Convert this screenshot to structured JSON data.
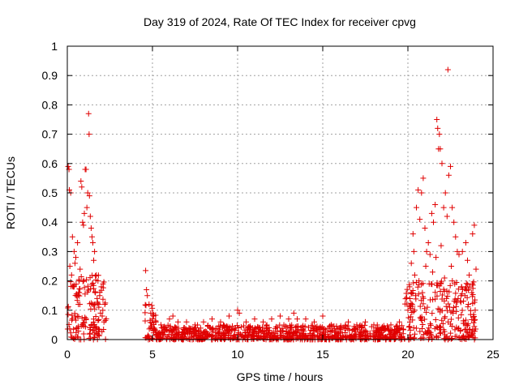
{
  "chart_data": {
    "type": "scatter",
    "title": "Day 319 of 2024, Rate Of TEC Index for receiver cpvg",
    "xlabel": "GPS time / hours",
    "ylabel": "ROTI / TECUs",
    "xlim": [
      0,
      25
    ],
    "ylim": [
      0,
      1
    ],
    "xticks": [
      "0",
      "5",
      "10",
      "15",
      "20",
      "25"
    ],
    "yticks": [
      "0",
      "0.1",
      "0.2",
      "0.3",
      "0.4",
      "0.5",
      "0.6",
      "0.7",
      "0.8",
      "0.9",
      "1"
    ],
    "grid": true,
    "marker": "+",
    "marker_color": "#e00000",
    "series": [
      {
        "points": [
          [
            0.05,
            0.59
          ],
          [
            0.1,
            0.58
          ],
          [
            0.12,
            0.51
          ],
          [
            0.2,
            0.5
          ],
          [
            0.3,
            0.35
          ],
          [
            0.4,
            0.3
          ],
          [
            0.5,
            0.28
          ],
          [
            0.6,
            0.33
          ],
          [
            0.7,
            0.2
          ],
          [
            0.8,
            0.54
          ],
          [
            0.85,
            0.52
          ],
          [
            0.9,
            0.4
          ],
          [
            0.95,
            0.39
          ],
          [
            1.0,
            0.43
          ],
          [
            1.05,
            0.58
          ],
          [
            1.1,
            0.58
          ],
          [
            1.15,
            0.45
          ],
          [
            1.2,
            0.5
          ],
          [
            1.25,
            0.77
          ],
          [
            1.28,
            0.7
          ],
          [
            1.3,
            0.49
          ],
          [
            1.35,
            0.42
          ],
          [
            1.4,
            0.38
          ],
          [
            1.45,
            0.35
          ],
          [
            1.5,
            0.33
          ],
          [
            1.6,
            0.3
          ],
          [
            1.7,
            0.22
          ],
          [
            1.8,
            0.2
          ],
          [
            1.9,
            0.15
          ],
          [
            2.0,
            0.18
          ],
          [
            2.1,
            0.19
          ],
          [
            2.2,
            0.12
          ],
          [
            0.15,
            0.25
          ],
          [
            0.25,
            0.22
          ],
          [
            0.35,
            0.18
          ],
          [
            0.45,
            0.26
          ],
          [
            0.55,
            0.15
          ],
          [
            0.65,
            0.12
          ],
          [
            0.75,
            0.24
          ],
          [
            1.55,
            0.27
          ],
          [
            1.65,
            0.16
          ],
          [
            1.75,
            0.14
          ],
          [
            1.85,
            0.11
          ],
          [
            1.95,
            0.09
          ],
          [
            2.05,
            0.08
          ],
          [
            2.15,
            0.06
          ],
          [
            4.6,
            0.235
          ],
          [
            4.65,
            0.17
          ],
          [
            4.7,
            0.15
          ],
          [
            4.8,
            0.12
          ],
          [
            4.9,
            0.09
          ],
          [
            5.0,
            0.07
          ],
          [
            5.2,
            0.06
          ],
          [
            5.5,
            0.05
          ],
          [
            6.0,
            0.07
          ],
          [
            6.2,
            0.08
          ],
          [
            6.5,
            0.06
          ],
          [
            7.0,
            0.06
          ],
          [
            7.5,
            0.05
          ],
          [
            8.0,
            0.06
          ],
          [
            8.5,
            0.07
          ],
          [
            9.0,
            0.06
          ],
          [
            9.5,
            0.08
          ],
          [
            10.0,
            0.1
          ],
          [
            10.1,
            0.09
          ],
          [
            10.5,
            0.06
          ],
          [
            11.0,
            0.07
          ],
          [
            11.5,
            0.06
          ],
          [
            12.0,
            0.07
          ],
          [
            12.5,
            0.08
          ],
          [
            13.0,
            0.07
          ],
          [
            13.3,
            0.09
          ],
          [
            13.5,
            0.07
          ],
          [
            14.0,
            0.07
          ],
          [
            14.5,
            0.06
          ],
          [
            15.0,
            0.08
          ],
          [
            15.5,
            0.05
          ],
          [
            16.0,
            0.04
          ],
          [
            16.5,
            0.06
          ],
          [
            17.0,
            0.05
          ],
          [
            17.5,
            0.06
          ],
          [
            18.0,
            0.05
          ],
          [
            18.5,
            0.04
          ],
          [
            19.0,
            0.05
          ],
          [
            19.5,
            0.06
          ],
          [
            20.0,
            0.1
          ],
          [
            20.1,
            0.18
          ],
          [
            20.2,
            0.26
          ],
          [
            20.3,
            0.36
          ],
          [
            20.35,
            0.3
          ],
          [
            20.4,
            0.22
          ],
          [
            20.5,
            0.45
          ],
          [
            20.6,
            0.51
          ],
          [
            20.7,
            0.41
          ],
          [
            20.8,
            0.5
          ],
          [
            20.9,
            0.55
          ],
          [
            21.0,
            0.38
          ],
          [
            21.1,
            0.3
          ],
          [
            21.2,
            0.33
          ],
          [
            21.3,
            0.29
          ],
          [
            21.4,
            0.43
          ],
          [
            21.5,
            0.4
          ],
          [
            21.6,
            0.46
          ],
          [
            21.7,
            0.75
          ],
          [
            21.75,
            0.72
          ],
          [
            21.8,
            0.65
          ],
          [
            21.85,
            0.7
          ],
          [
            21.9,
            0.65
          ],
          [
            22.0,
            0.6
          ],
          [
            22.1,
            0.45
          ],
          [
            22.2,
            0.5
          ],
          [
            22.3,
            0.42
          ],
          [
            22.35,
            0.92
          ],
          [
            22.4,
            0.56
          ],
          [
            22.5,
            0.59
          ],
          [
            22.6,
            0.45
          ],
          [
            22.7,
            0.4
          ],
          [
            22.8,
            0.35
          ],
          [
            22.9,
            0.3
          ],
          [
            23.0,
            0.29
          ],
          [
            23.2,
            0.3
          ],
          [
            23.4,
            0.33
          ],
          [
            23.5,
            0.27
          ],
          [
            23.6,
            0.22
          ],
          [
            23.8,
            0.36
          ],
          [
            23.9,
            0.39
          ],
          [
            24.0,
            0.24
          ],
          [
            20.25,
            0.12
          ],
          [
            20.45,
            0.15
          ],
          [
            20.65,
            0.2
          ],
          [
            20.85,
            0.16
          ],
          [
            21.05,
            0.25
          ],
          [
            21.25,
            0.19
          ],
          [
            21.45,
            0.23
          ],
          [
            21.65,
            0.28
          ],
          [
            21.95,
            0.32
          ],
          [
            22.15,
            0.21
          ],
          [
            22.55,
            0.25
          ],
          [
            22.75,
            0.19
          ],
          [
            22.95,
            0.14
          ],
          [
            23.15,
            0.18
          ],
          [
            23.35,
            0.15
          ],
          [
            23.55,
            0.12
          ],
          [
            23.75,
            0.16
          ],
          [
            23.95,
            0.1
          ]
        ],
        "dense_bands": [
          {
            "x_from": 0.0,
            "x_to": 2.3,
            "y_from": 0.0,
            "y_to": 0.22
          },
          {
            "x_from": 4.55,
            "x_to": 5.2,
            "y_from": 0.0,
            "y_to": 0.12
          },
          {
            "x_from": 5.2,
            "x_to": 19.8,
            "y_from": 0.0,
            "y_to": 0.05
          },
          {
            "x_from": 19.8,
            "x_to": 24.0,
            "y_from": 0.0,
            "y_to": 0.2
          }
        ]
      }
    ]
  }
}
